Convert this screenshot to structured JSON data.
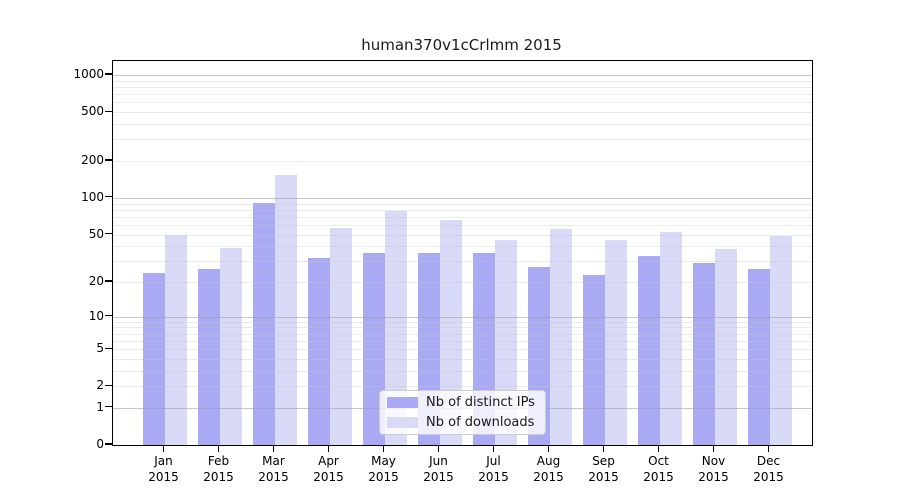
{
  "chart_data": {
    "type": "bar",
    "title": "human370v1cCrlmm 2015",
    "year_label": "2015",
    "categories": [
      "Jan",
      "Feb",
      "Mar",
      "Apr",
      "May",
      "Jun",
      "Jul",
      "Aug",
      "Sep",
      "Oct",
      "Nov",
      "Dec"
    ],
    "series": [
      {
        "name": "Nb of distinct IPs",
        "color": "#a9a9f4",
        "values": [
          24,
          26,
          91,
          32,
          35,
          35,
          35,
          27,
          23,
          33,
          29,
          26
        ]
      },
      {
        "name": "Nb of downloads",
        "color": "#d9d9f8",
        "values": [
          50,
          39,
          154,
          57,
          78,
          66,
          45,
          56,
          45,
          52,
          38,
          49
        ]
      }
    ],
    "y_ticks": [
      0,
      1,
      2,
      5,
      10,
      20,
      50,
      100,
      200,
      500,
      1000
    ],
    "y_minor_gridlines": [
      2,
      3,
      4,
      5,
      6,
      7,
      8,
      9,
      20,
      30,
      40,
      50,
      60,
      70,
      80,
      90,
      200,
      300,
      400,
      500,
      600,
      700,
      800,
      900
    ],
    "y_major_gridlines": [
      1,
      10,
      100,
      1000
    ],
    "y_scale": "log10(1+x)",
    "ylim": [
      0,
      1300
    ],
    "grid": "horizontal",
    "legend_position": "lower center",
    "colors": {
      "axis": "#000000",
      "title_text": "#1a1a1a",
      "grid_minor_overlay": "rgba(200,200,200,0.38)",
      "grid_major_overlay": "rgba(155,155,155,0.55)",
      "legend_border": "#cccccc"
    }
  }
}
